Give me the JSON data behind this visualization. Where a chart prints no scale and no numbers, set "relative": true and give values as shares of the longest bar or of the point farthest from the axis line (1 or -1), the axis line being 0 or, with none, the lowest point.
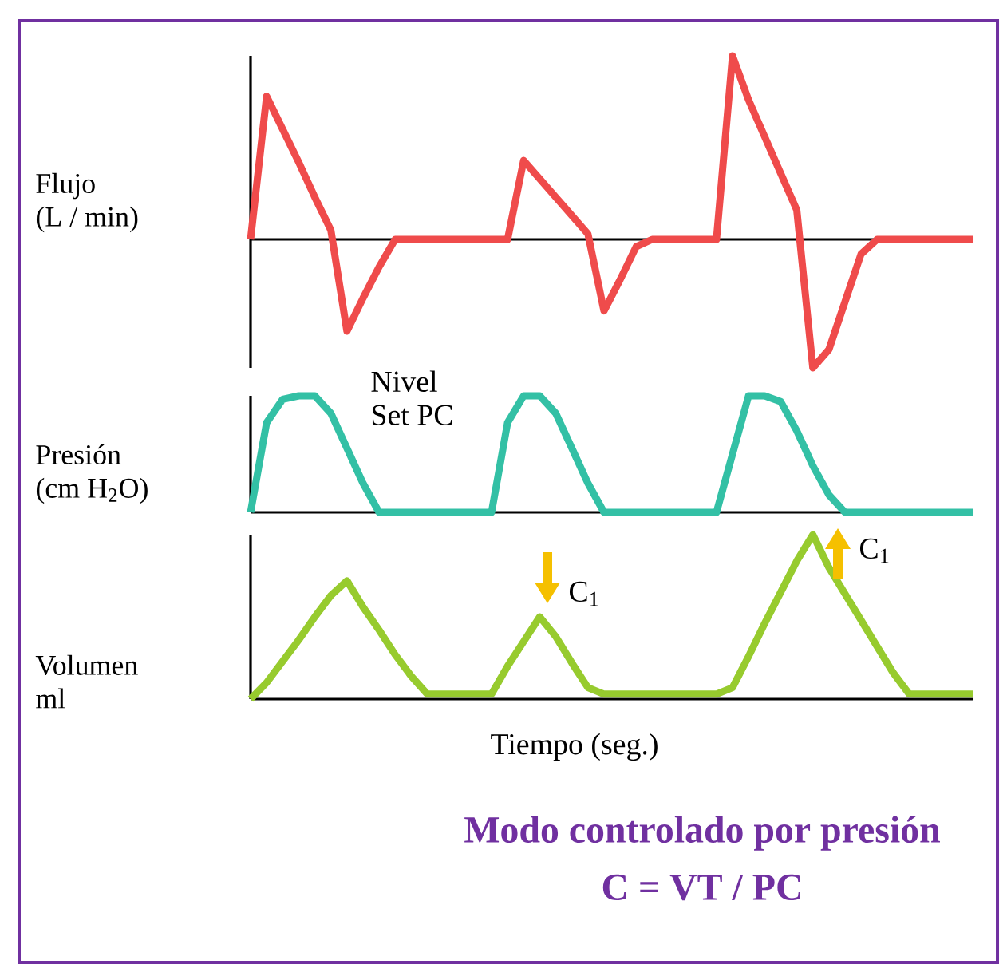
{
  "chart_data": [
    {
      "type": "line",
      "relative": true,
      "ylabel": "Flujo (L / min)",
      "categories": [
        null,
        null,
        null,
        null,
        null,
        null,
        null,
        null,
        null,
        null,
        null,
        null,
        null,
        null,
        null,
        null,
        null,
        null,
        null,
        null,
        null,
        null,
        null,
        null,
        null,
        null,
        null,
        null,
        null,
        null,
        null,
        null,
        null,
        null,
        null,
        null,
        null,
        null,
        null,
        null,
        null,
        null,
        null,
        null,
        null,
        null
      ],
      "series": [
        {
          "color": "#ef4b4b",
          "values": [
            0,
            0.78,
            0.6,
            0.42,
            0.23,
            0.05,
            -0.5,
            -0.32,
            -0.15,
            0,
            0,
            0,
            0,
            0,
            0,
            0,
            0,
            0.43,
            0.33,
            0.23,
            0.13,
            0.03,
            -0.39,
            -0.22,
            -0.04,
            0,
            0,
            0,
            0,
            0,
            1,
            0.76,
            0.56,
            0.36,
            0.16,
            -0.7,
            -0.6,
            -0.34,
            -0.08,
            0,
            0,
            0,
            0,
            0,
            0,
            0
          ]
        }
      ]
    },
    {
      "type": "line",
      "relative": true,
      "ylabel": "Presión (cm H$_{2}$O)",
      "annotations": [
        "Nivel Set PC"
      ],
      "categories": [
        null,
        null,
        null,
        null,
        null,
        null,
        null,
        null,
        null,
        null,
        null,
        null,
        null,
        null,
        null,
        null,
        null,
        null,
        null,
        null,
        null,
        null,
        null,
        null,
        null,
        null,
        null,
        null,
        null,
        null,
        null,
        null,
        null,
        null,
        null,
        null,
        null,
        null,
        null,
        null,
        null,
        null,
        null,
        null,
        null,
        null
      ],
      "series": [
        {
          "color": "#33c0a5",
          "values": [
            0,
            0.77,
            0.97,
            1,
            1,
            0.85,
            0.55,
            0.25,
            0,
            0,
            0,
            0,
            0,
            0,
            0,
            0,
            0.77,
            1,
            1,
            0.85,
            0.55,
            0.25,
            0,
            0,
            0,
            0,
            0,
            0,
            0,
            0,
            0.5,
            1,
            1,
            0.95,
            0.7,
            0.4,
            0.15,
            0,
            0,
            0,
            0,
            0,
            0,
            0,
            0,
            0
          ]
        }
      ]
    },
    {
      "type": "line",
      "relative": true,
      "ylabel": "Volumen ml",
      "xlabel": "Tiempo (seg.)",
      "title": "Modo controlado por presión",
      "subtitle": "C = VT / PC",
      "annotations": [
        "C$_{1}$",
        "C$_{1}$"
      ],
      "categories": [
        null,
        null,
        null,
        null,
        null,
        null,
        null,
        null,
        null,
        null,
        null,
        null,
        null,
        null,
        null,
        null,
        null,
        null,
        null,
        null,
        null,
        null,
        null,
        null,
        null,
        null,
        null,
        null,
        null,
        null,
        null,
        null,
        null,
        null,
        null,
        null,
        null,
        null,
        null,
        null,
        null,
        null,
        null,
        null,
        null,
        null
      ],
      "series": [
        {
          "color": "#97cb2e",
          "values": [
            0,
            0.1,
            0.23,
            0.36,
            0.5,
            0.63,
            0.72,
            0.56,
            0.42,
            0.27,
            0.14,
            0.03,
            0.03,
            0.03,
            0.03,
            0.03,
            0.2,
            0.35,
            0.5,
            0.38,
            0.22,
            0.07,
            0.03,
            0.03,
            0.03,
            0.03,
            0.03,
            0.03,
            0.03,
            0.03,
            0.07,
            0.26,
            0.46,
            0.65,
            0.84,
            1,
            0.8,
            0.64,
            0.48,
            0.32,
            0.16,
            0.03,
            0.03,
            0.03,
            0.03,
            0.03
          ]
        }
      ]
    }
  ]
}
